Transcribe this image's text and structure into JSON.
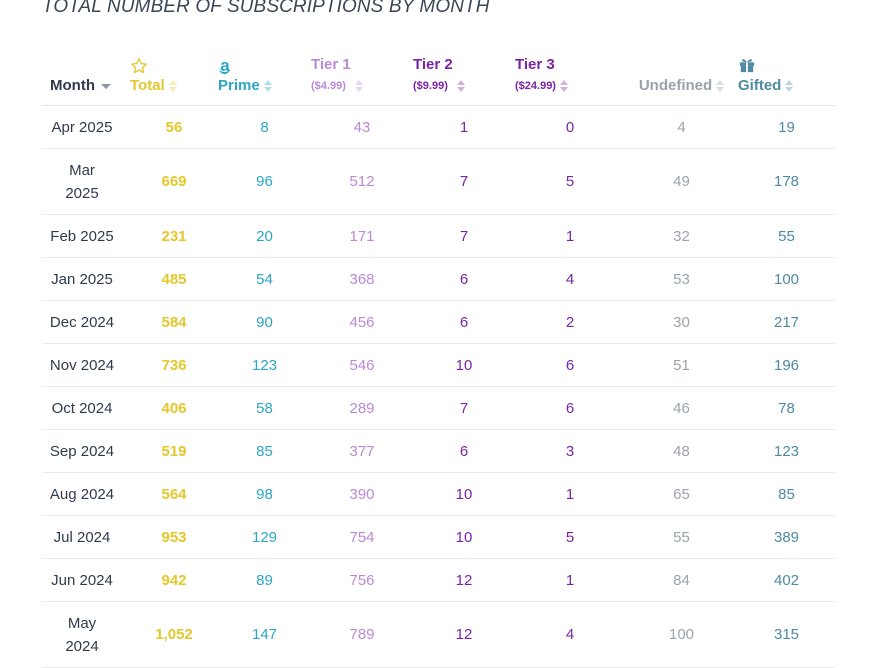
{
  "title": "TOTAL NUMBER OF SUBSCRIPTIONS BY MONTH",
  "columns": {
    "month": {
      "label": "Month"
    },
    "total": {
      "label": "Total",
      "icon": "star-icon"
    },
    "prime": {
      "label": "Prime",
      "icon": "amazon-icon"
    },
    "tier1": {
      "label": "Tier 1",
      "sub": "($4.99)"
    },
    "tier2": {
      "label": "Tier 2",
      "sub": "($9.99)"
    },
    "tier3": {
      "label": "Tier 3",
      "sub": "($24.99)"
    },
    "undefined": {
      "label": "Undefined"
    },
    "gifted": {
      "label": "Gifted",
      "icon": "gift-icon"
    }
  },
  "colors": {
    "total": "#e4c72b",
    "prime": "#2ba6c4",
    "tier1": "#b98ad8",
    "tier2": "#7a23a6",
    "tier3": "#7a23a6",
    "undefined": "#9aa3ad",
    "gifted": "#4f8aa3"
  },
  "rows": [
    {
      "month": "Apr 2025",
      "total": "56",
      "prime": "8",
      "tier1": "43",
      "tier2": "1",
      "tier3": "0",
      "undefined": "4",
      "gifted": "19"
    },
    {
      "month": "Mar 2025",
      "total": "669",
      "prime": "96",
      "tier1": "512",
      "tier2": "7",
      "tier3": "5",
      "undefined": "49",
      "gifted": "178"
    },
    {
      "month": "Feb 2025",
      "total": "231",
      "prime": "20",
      "tier1": "171",
      "tier2": "7",
      "tier3": "1",
      "undefined": "32",
      "gifted": "55"
    },
    {
      "month": "Jan 2025",
      "total": "485",
      "prime": "54",
      "tier1": "368",
      "tier2": "6",
      "tier3": "4",
      "undefined": "53",
      "gifted": "100"
    },
    {
      "month": "Dec 2024",
      "total": "584",
      "prime": "90",
      "tier1": "456",
      "tier2": "6",
      "tier3": "2",
      "undefined": "30",
      "gifted": "217"
    },
    {
      "month": "Nov 2024",
      "total": "736",
      "prime": "123",
      "tier1": "546",
      "tier2": "10",
      "tier3": "6",
      "undefined": "51",
      "gifted": "196"
    },
    {
      "month": "Oct 2024",
      "total": "406",
      "prime": "58",
      "tier1": "289",
      "tier2": "7",
      "tier3": "6",
      "undefined": "46",
      "gifted": "78"
    },
    {
      "month": "Sep 2024",
      "total": "519",
      "prime": "85",
      "tier1": "377",
      "tier2": "6",
      "tier3": "3",
      "undefined": "48",
      "gifted": "123"
    },
    {
      "month": "Aug 2024",
      "total": "564",
      "prime": "98",
      "tier1": "390",
      "tier2": "10",
      "tier3": "1",
      "undefined": "65",
      "gifted": "85"
    },
    {
      "month": "Jul 2024",
      "total": "953",
      "prime": "129",
      "tier1": "754",
      "tier2": "10",
      "tier3": "5",
      "undefined": "55",
      "gifted": "389"
    },
    {
      "month": "Jun 2024",
      "total": "942",
      "prime": "89",
      "tier1": "756",
      "tier2": "12",
      "tier3": "1",
      "undefined": "84",
      "gifted": "402"
    },
    {
      "month": "May 2024",
      "total": "1,052",
      "prime": "147",
      "tier1": "789",
      "tier2": "12",
      "tier3": "4",
      "undefined": "100",
      "gifted": "315"
    }
  ]
}
